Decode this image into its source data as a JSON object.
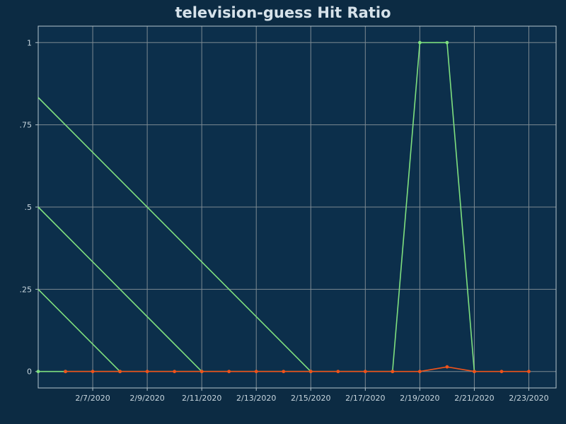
{
  "chart_data": {
    "type": "line",
    "title": "television-guess Hit Ratio",
    "xlabel": "",
    "ylabel": "",
    "xlim": [
      "2/5/2020",
      "2/24/2020"
    ],
    "ylim": [
      -0.05,
      1.05
    ],
    "x_ticks": [
      "2/7/2020",
      "2/9/2020",
      "2/11/2020",
      "2/13/2020",
      "2/15/2020",
      "2/17/2020",
      "2/19/2020",
      "2/21/2020",
      "2/23/2020"
    ],
    "y_ticks": [
      {
        "value": 0,
        "label": "0"
      },
      {
        "value": 0.25,
        "label": ".25"
      },
      {
        "value": 0.5,
        "label": ".5"
      },
      {
        "value": 0.75,
        "label": ".75"
      },
      {
        "value": 1,
        "label": "1"
      }
    ],
    "grid": true,
    "series": [
      {
        "color": "#7fe07f",
        "markers": true,
        "x": [
          "2/5/2020",
          "2/6/2020",
          "2/7/2020",
          "2/8/2020",
          "2/9/2020",
          "2/10/2020",
          "2/11/2020",
          "2/12/2020",
          "2/13/2020",
          "2/14/2020",
          "2/15/2020",
          "2/16/2020",
          "2/17/2020",
          "2/18/2020",
          "2/19/2020",
          "2/20/2020",
          "2/21/2020",
          "2/22/2020",
          "2/23/2020"
        ],
        "values": [
          0,
          0,
          null,
          0,
          null,
          null,
          0,
          null,
          null,
          null,
          0,
          null,
          null,
          0,
          1,
          1,
          0,
          null,
          null
        ]
      },
      {
        "color": "#7fe07f",
        "markers": false,
        "x": [
          "2/5/2020",
          "2/8/2020"
        ],
        "values": [
          0.25,
          0
        ]
      },
      {
        "color": "#7fe07f",
        "markers": false,
        "x": [
          "2/5/2020",
          "2/11/2020"
        ],
        "values": [
          0.5,
          0
        ]
      },
      {
        "color": "#7fe07f",
        "markers": false,
        "x": [
          "2/5/2020",
          "2/15/2020"
        ],
        "values": [
          0.833,
          0
        ]
      },
      {
        "color": "#f0531a",
        "markers": true,
        "x": [
          "2/6/2020",
          "2/7/2020",
          "2/8/2020",
          "2/9/2020",
          "2/10/2020",
          "2/11/2020",
          "2/12/2020",
          "2/13/2020",
          "2/14/2020",
          "2/15/2020",
          "2/16/2020",
          "2/17/2020",
          "2/18/2020",
          "2/19/2020",
          "2/20/2020",
          "2/21/2020",
          "2/22/2020",
          "2/23/2020"
        ],
        "values": [
          0,
          0,
          0,
          0,
          0,
          0,
          0,
          0,
          0,
          0,
          0,
          0,
          0,
          0,
          0.014,
          0,
          0,
          0
        ]
      }
    ],
    "colors": {
      "background": "#0c2b43",
      "plot_background": "#0c2f4b",
      "grid": "#7d8a92",
      "axis": "#b5c4cc",
      "text": "#c8d6de",
      "title": "#d6e2ea"
    }
  }
}
